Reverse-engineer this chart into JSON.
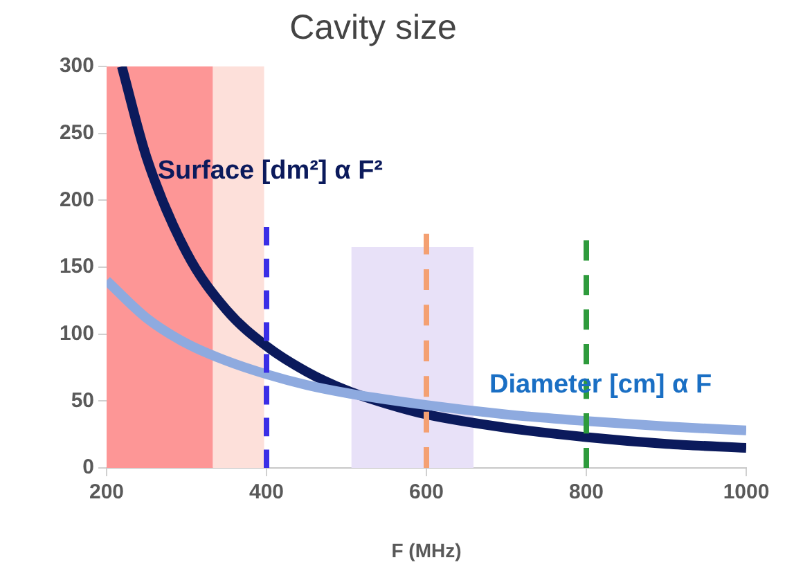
{
  "chart_data": {
    "type": "line",
    "title": "Cavity size",
    "xlabel": "F (MHz)",
    "xlim": [
      200,
      1000
    ],
    "xticks": [
      200,
      400,
      600,
      800,
      1000
    ],
    "ylim": [
      0,
      300
    ],
    "yticks": [
      0,
      50,
      100,
      150,
      200,
      250,
      300
    ],
    "grid": false,
    "legend": false,
    "marker": "none",
    "line_style": "solid",
    "bands": [
      {
        "axis": "x",
        "from": 200,
        "to": 333,
        "color": "#fd9696"
      },
      {
        "axis": "x",
        "from": 333,
        "to": 397,
        "color": "#fde0da"
      }
    ],
    "series": [
      {
        "type": "area",
        "color": "#e8e1f8",
        "x": [
          506,
          659
        ],
        "values": [
          165,
          165
        ]
      },
      {
        "name": "Surface [dm²] α F²",
        "color": "#0b1a5c",
        "x": [
          219,
          250,
          300,
          350,
          400,
          450,
          500,
          550,
          600,
          700,
          800,
          900,
          1000
        ],
        "values": [
          300,
          232,
          161,
          118,
          91,
          72,
          58,
          48,
          40,
          30,
          23,
          18,
          15
        ]
      },
      {
        "name": "Diameter [cm] α F",
        "color": "#8eaadf",
        "x": [
          200,
          250,
          300,
          350,
          400,
          450,
          500,
          600,
          700,
          800,
          900,
          1000
        ],
        "values": [
          140,
          112,
          93,
          80,
          70,
          62,
          56,
          47,
          40,
          35,
          31,
          28
        ]
      },
      {
        "color": "#3a2ee6",
        "line_style": "dashed",
        "x": [
          400,
          400
        ],
        "values": [
          0,
          180
        ]
      },
      {
        "color": "#f4a072",
        "line_style": "dashed",
        "x": [
          600,
          600
        ],
        "values": [
          0,
          175
        ]
      },
      {
        "color": "#2e9b3c",
        "line_style": "dashed",
        "x": [
          800,
          800
        ],
        "values": [
          0,
          170
        ]
      }
    ]
  }
}
